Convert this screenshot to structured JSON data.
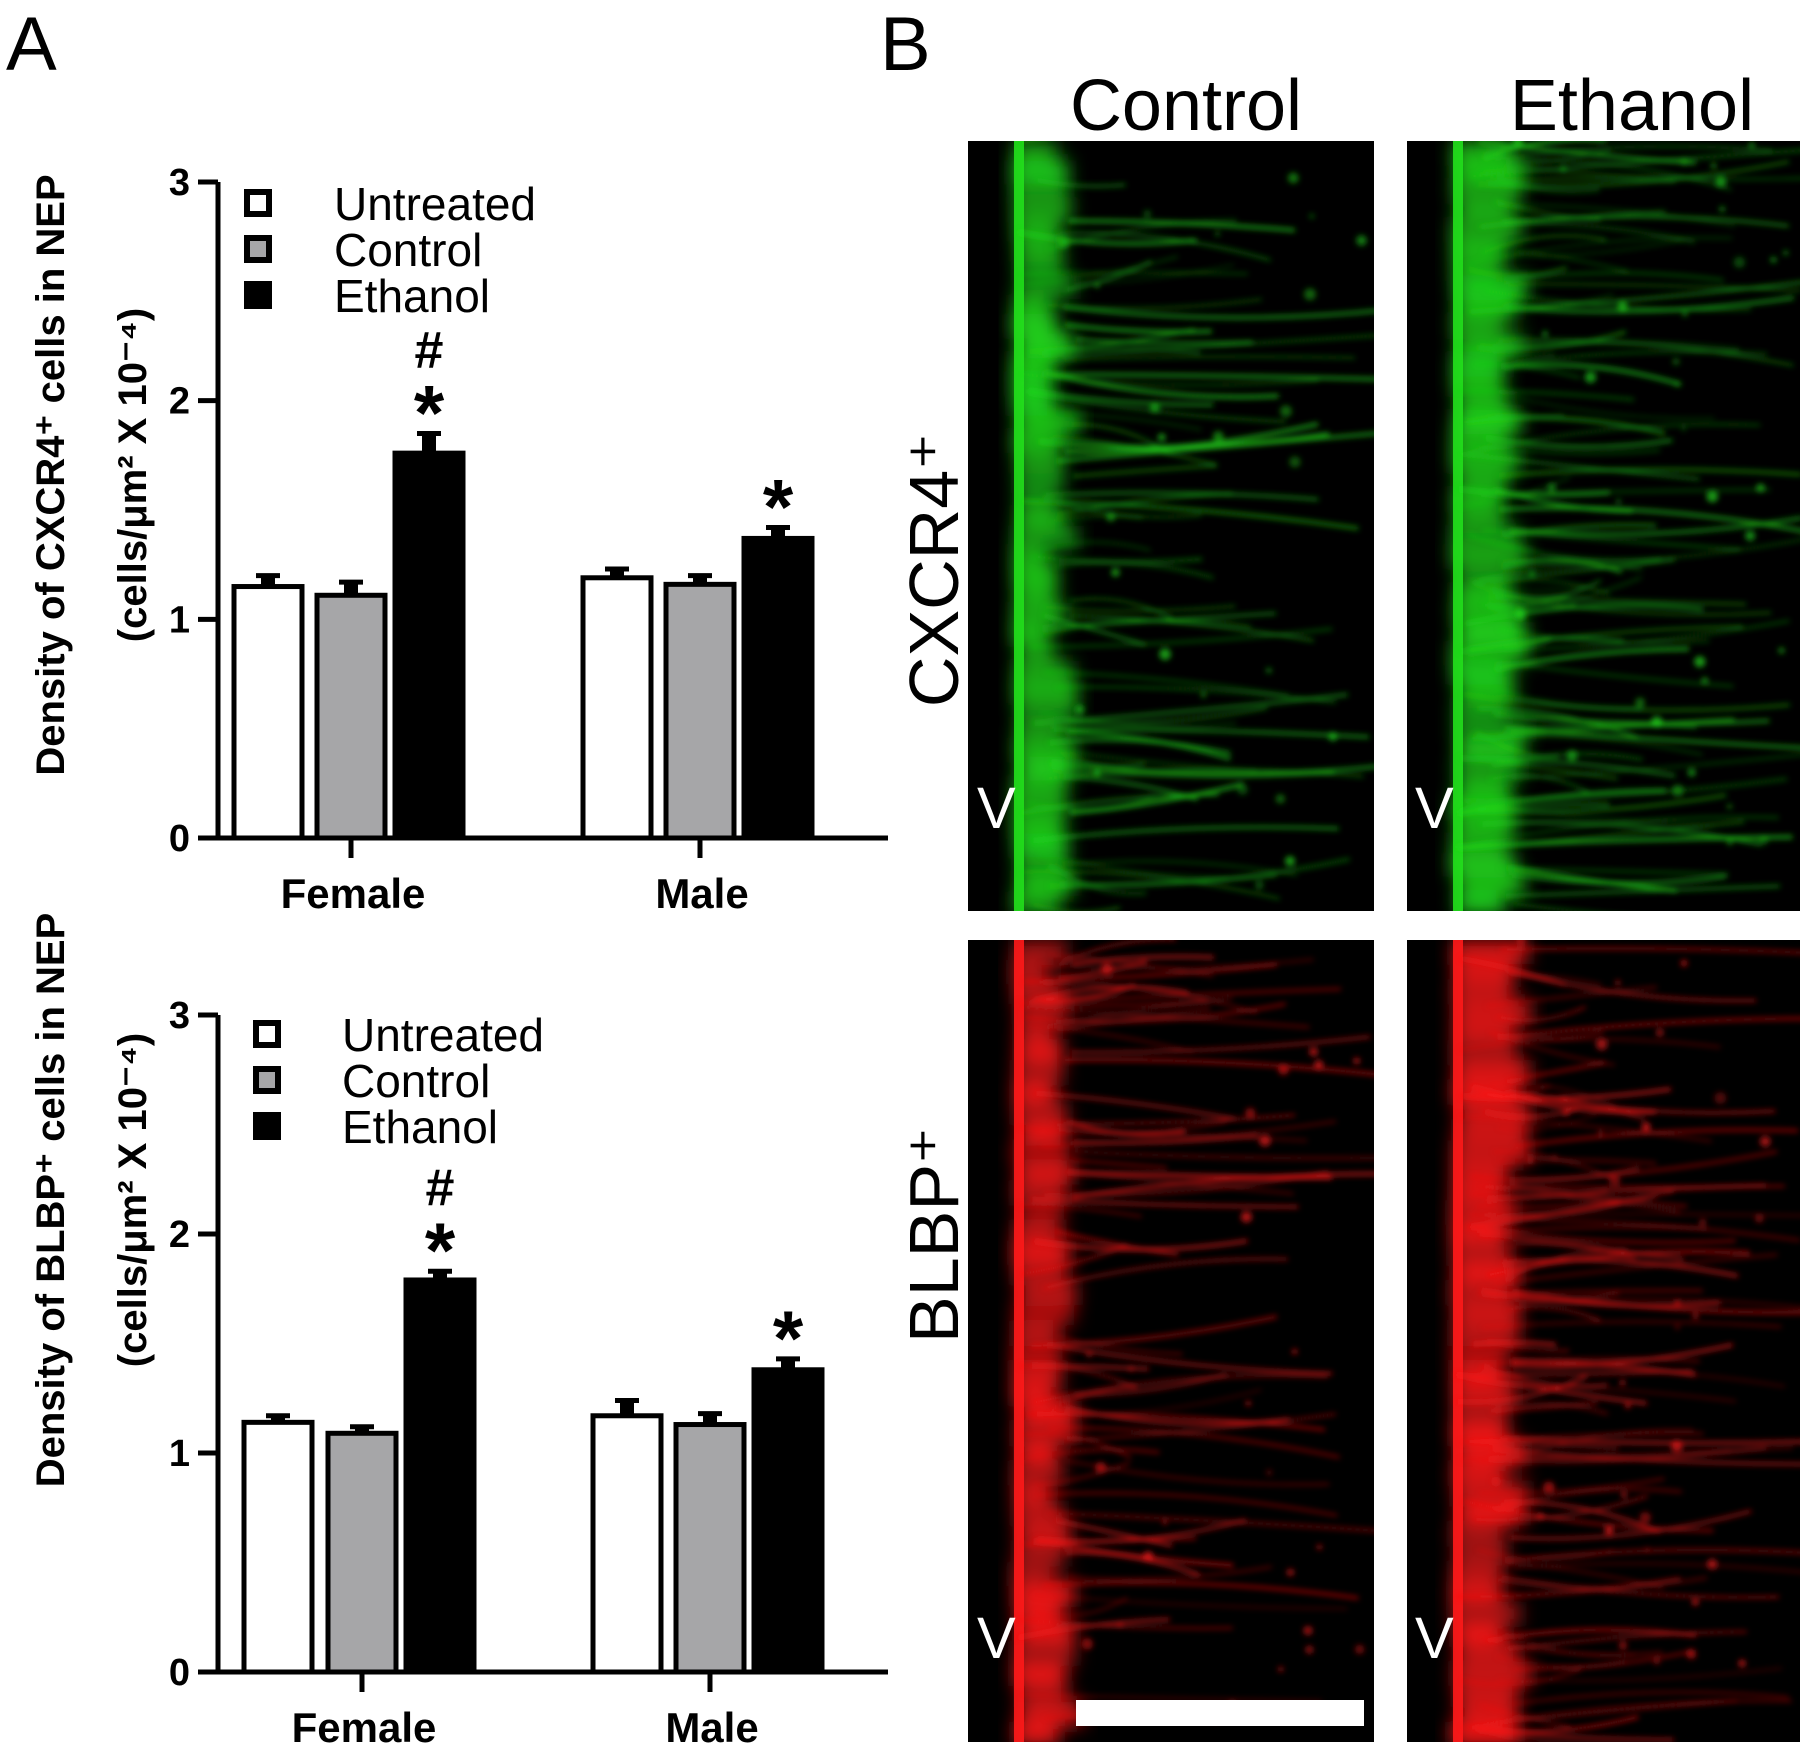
{
  "panel_labels": {
    "a": "A",
    "b": "B"
  },
  "chart_data": [
    {
      "type": "bar",
      "ylabel_line1": "Density of CXCR4⁺ cells in NEP",
      "ylabel_line2": "(cells/μm² X 10⁻⁴)",
      "categories": [
        "Female",
        "Male"
      ],
      "ylim": [
        0,
        3
      ],
      "yticks": [
        "0",
        "1",
        "2",
        "3"
      ],
      "legend_position": "top-left",
      "series": [
        {
          "name": "Untreated",
          "color": "#ffffff",
          "values": [
            1.15,
            1.19
          ],
          "errors": [
            0.05,
            0.04
          ]
        },
        {
          "name": "Control",
          "color": "#a6a6a8",
          "values": [
            1.11,
            1.16
          ],
          "errors": [
            0.06,
            0.04
          ]
        },
        {
          "name": "Ethanol",
          "color": "#000000",
          "values": [
            1.76,
            1.37
          ],
          "errors": [
            0.09,
            0.05
          ]
        }
      ],
      "annotations": [
        {
          "category": 0,
          "series": 2,
          "symbols": [
            "#",
            "*"
          ]
        },
        {
          "category": 1,
          "series": 2,
          "symbols": [
            "*"
          ]
        }
      ]
    },
    {
      "type": "bar",
      "ylabel_line1": "Density of BLBP⁺ cells in NEP",
      "ylabel_line2": "(cells/μm² X 10⁻⁴)",
      "categories": [
        "Female",
        "Male"
      ],
      "ylim": [
        0,
        3
      ],
      "yticks": [
        "0",
        "1",
        "2",
        "3"
      ],
      "legend_position": "top-left",
      "series": [
        {
          "name": "Untreated",
          "color": "#ffffff",
          "values": [
            1.14,
            1.17
          ],
          "errors": [
            0.03,
            0.07
          ]
        },
        {
          "name": "Control",
          "color": "#a6a6a8",
          "values": [
            1.09,
            1.13
          ],
          "errors": [
            0.03,
            0.05
          ]
        },
        {
          "name": "Ethanol",
          "color": "#000000",
          "values": [
            1.79,
            1.38
          ],
          "errors": [
            0.04,
            0.05
          ]
        }
      ],
      "annotations": [
        {
          "category": 0,
          "series": 2,
          "symbols": [
            "#",
            "*"
          ]
        },
        {
          "category": 1,
          "series": 2,
          "symbols": [
            "*"
          ]
        }
      ]
    }
  ],
  "micrographs": {
    "columns": [
      "Control",
      "Ethanol"
    ],
    "rows": [
      {
        "label": "CXCR4⁺",
        "color": "#22e01c"
      },
      {
        "label": "BLBP⁺",
        "color": "#ff1a1a"
      }
    ],
    "ventricle_label": "V"
  }
}
